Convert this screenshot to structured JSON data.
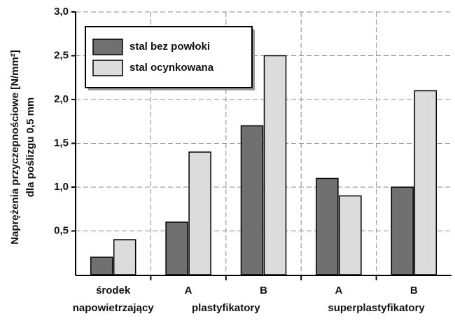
{
  "chart_data": {
    "type": "bar",
    "y_label": [
      "Naprężenia przyczepnościowe [N/mm²]",
      "dla poślizgu 0,5 mm"
    ],
    "categories": [
      "środek napowietrzający",
      "A",
      "B",
      "A",
      "B"
    ],
    "groups": [
      {
        "name": "plastyfikatory",
        "first": 1,
        "last": 2
      },
      {
        "name": "superplastyfikatory",
        "first": 3,
        "last": 4
      }
    ],
    "series": [
      {
        "name": "stal bez powłoki",
        "color": "#707070",
        "values": [
          0.2,
          0.6,
          1.7,
          1.1,
          1.0
        ]
      },
      {
        "name": "stal ocynkowana",
        "color": "#dcdcdc",
        "values": [
          0.4,
          1.4,
          2.5,
          0.9,
          2.1
        ]
      }
    ],
    "ylim": [
      0,
      3
    ],
    "yticks": [
      {
        "value": 0.5,
        "label": "0,5"
      },
      {
        "value": 1,
        "label": "1,0"
      },
      {
        "value": 1.5,
        "label": "1,5"
      },
      {
        "value": 2,
        "label": "2,0"
      },
      {
        "value": 2.5,
        "label": "2,5"
      },
      {
        "value": 3,
        "label": "3,0"
      }
    ],
    "grid": true,
    "legend": "upper left"
  }
}
